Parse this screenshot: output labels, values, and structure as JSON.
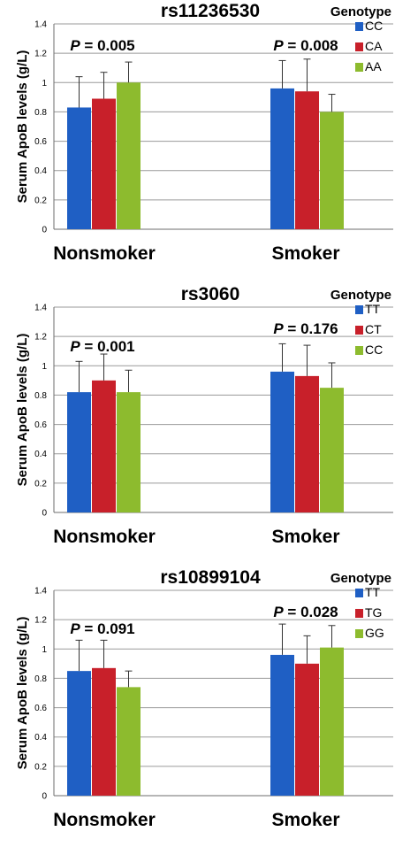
{
  "chart_data": [
    {
      "type": "bar",
      "title": "rs11236530",
      "ylabel": "Serum ApoB levels (g/L)",
      "ylim": [
        0,
        1.4
      ],
      "yticks": [
        "0",
        "0.2",
        "0.4",
        "0.6",
        "0.8",
        "1",
        "1.2",
        "1.4"
      ],
      "grid": true,
      "legend_title": "Genotype",
      "legend_position": "top-right",
      "categories": [
        "Nonsmoker",
        "Smoker"
      ],
      "series": [
        {
          "name": "CC",
          "color": "#1f5fc4",
          "values": [
            0.83,
            0.96
          ],
          "errors": [
            0.21,
            0.19
          ]
        },
        {
          "name": "CA",
          "color": "#c8202a",
          "values": [
            0.89,
            0.94
          ],
          "errors": [
            0.18,
            0.22
          ]
        },
        {
          "name": "AA",
          "color": "#8dbb2e",
          "values": [
            1.0,
            0.8
          ],
          "errors": [
            0.14,
            0.12
          ]
        }
      ],
      "p_values": [
        "P = 0.005",
        "P = 0.008"
      ]
    },
    {
      "type": "bar",
      "title": "rs3060",
      "ylabel": "Serum ApoB levels (g/L)",
      "ylim": [
        0,
        1.4
      ],
      "yticks": [
        "0",
        "0.2",
        "0.4",
        "0.6",
        "0.8",
        "1",
        "1.2",
        "1.4"
      ],
      "grid": true,
      "legend_title": "Genotype",
      "legend_position": "top-right",
      "categories": [
        "Nonsmoker",
        "Smoker"
      ],
      "series": [
        {
          "name": "TT",
          "color": "#1f5fc4",
          "values": [
            0.82,
            0.96
          ],
          "errors": [
            0.21,
            0.19
          ]
        },
        {
          "name": "CT",
          "color": "#c8202a",
          "values": [
            0.9,
            0.93
          ],
          "errors": [
            0.18,
            0.21
          ]
        },
        {
          "name": "CC",
          "color": "#8dbb2e",
          "values": [
            0.82,
            0.85
          ],
          "errors": [
            0.15,
            0.17
          ]
        }
      ],
      "p_values": [
        "P = 0.001",
        "P = 0.176"
      ]
    },
    {
      "type": "bar",
      "title": "rs10899104",
      "ylabel": "Serum ApoB levels (g/L)",
      "ylim": [
        0,
        1.4
      ],
      "yticks": [
        "0",
        "0.2",
        "0.4",
        "0.6",
        "0.8",
        "1",
        "1.2",
        "1.4"
      ],
      "grid": true,
      "legend_title": "Genotype",
      "legend_position": "top-right",
      "categories": [
        "Nonsmoker",
        "Smoker"
      ],
      "series": [
        {
          "name": "TT",
          "color": "#1f5fc4",
          "values": [
            0.85,
            0.96
          ],
          "errors": [
            0.21,
            0.21
          ]
        },
        {
          "name": "TG",
          "color": "#c8202a",
          "values": [
            0.87,
            0.9
          ],
          "errors": [
            0.19,
            0.19
          ]
        },
        {
          "name": "GG",
          "color": "#8dbb2e",
          "values": [
            0.74,
            1.01
          ],
          "errors": [
            0.11,
            0.15
          ]
        }
      ],
      "p_values": [
        "P = 0.091",
        "P = 0.028"
      ]
    }
  ]
}
